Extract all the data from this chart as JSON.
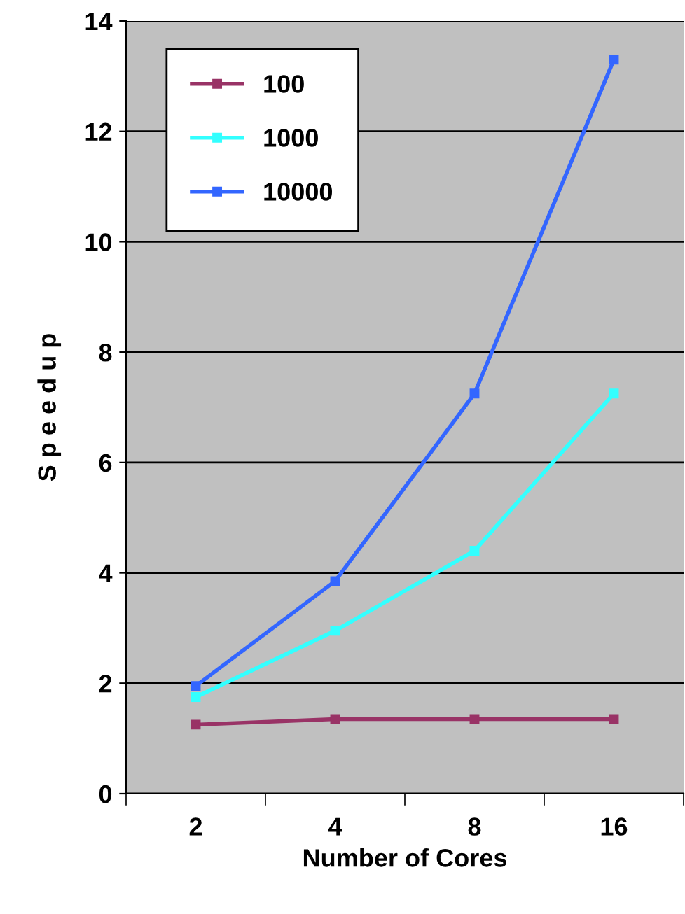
{
  "chart_data": {
    "type": "line",
    "xlabel": "Number of Cores",
    "ylabel": "S p e e d u p",
    "categories": [
      "2",
      "4",
      "8",
      "16"
    ],
    "series": [
      {
        "name": "100",
        "color": "#993366",
        "values": [
          1.25,
          1.35,
          1.35,
          1.35
        ]
      },
      {
        "name": "1000",
        "color": "#33ffff",
        "values": [
          1.75,
          2.95,
          4.4,
          7.25
        ]
      },
      {
        "name": "10000",
        "color": "#3366ff",
        "values": [
          1.95,
          3.85,
          7.25,
          13.3
        ]
      }
    ],
    "ylim": [
      0,
      14
    ],
    "yticks": [
      0,
      2,
      4,
      6,
      8,
      10,
      12,
      14
    ],
    "grid": "y",
    "legend": "top left",
    "marker": "square"
  }
}
